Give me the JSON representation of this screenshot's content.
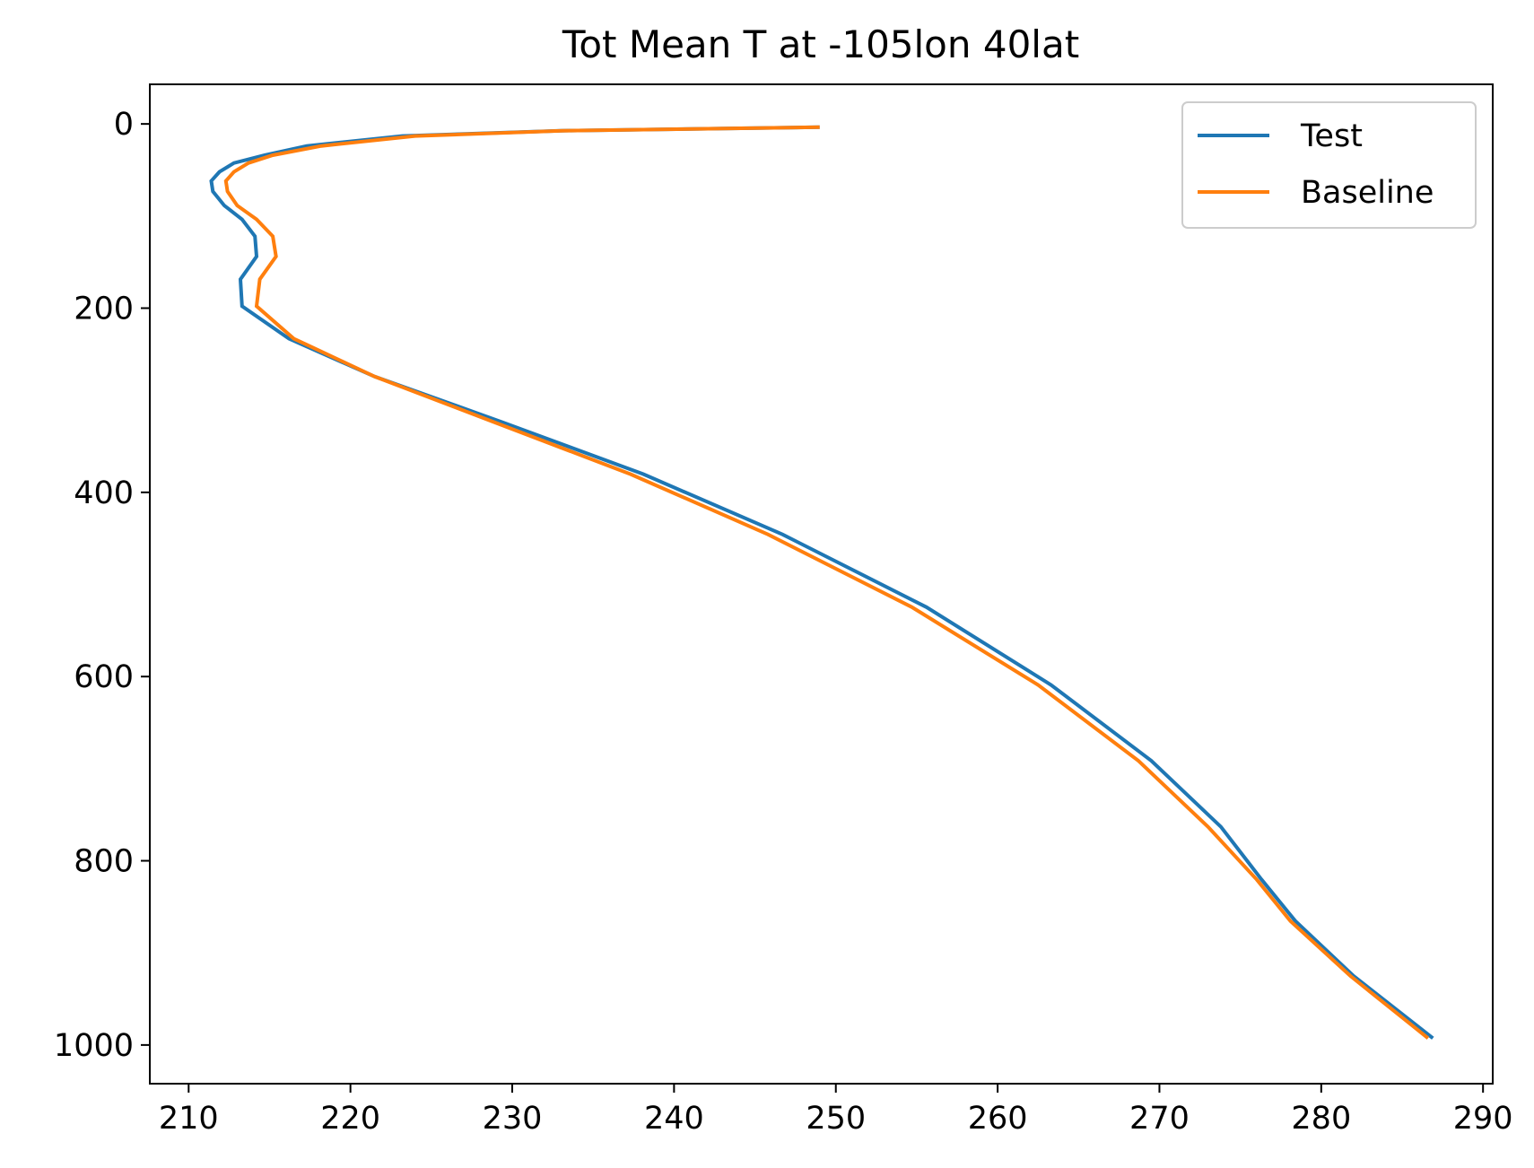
{
  "chart_data": {
    "type": "line",
    "title": "Tot Mean T at -105lon 40lat",
    "xlabel": "",
    "ylabel": "",
    "xlim": [
      207.6,
      290.6
    ],
    "ylim": [
      1042,
      -43
    ],
    "y_inverted": true,
    "grid": false,
    "legend_position": "upper right",
    "xticks": [
      210,
      220,
      230,
      240,
      250,
      260,
      270,
      280,
      290
    ],
    "yticks": [
      0,
      200,
      400,
      600,
      800,
      1000
    ],
    "series": [
      {
        "name": "Test",
        "color": "#1f77b4",
        "x": [
          249.0,
          233.0,
          223.2,
          217.3,
          214.7,
          212.8,
          211.9,
          211.4,
          211.5,
          212.2,
          213.3,
          214.1,
          214.2,
          213.2,
          213.3,
          216.2,
          221.5,
          229.4,
          238.1,
          246.7,
          255.6,
          263.3,
          269.5,
          273.8,
          276.3,
          278.4,
          282.0,
          286.9
        ],
        "y": [
          3.6,
          7.4,
          13.1,
          23.9,
          33.9,
          42.4,
          52.1,
          61.9,
          73.3,
          88.6,
          103.6,
          122.0,
          143.9,
          168.6,
          197.9,
          233.1,
          274.3,
          323.9,
          380.2,
          445.6,
          524.6,
          609.1,
          691.4,
          763.2,
          820.1,
          865.4,
          925.0,
          992.6
        ]
      },
      {
        "name": "Baseline",
        "color": "#ff7f0e",
        "x": [
          249.0,
          233.1,
          224.0,
          218.2,
          215.2,
          213.7,
          212.8,
          212.3,
          212.4,
          213.0,
          214.2,
          215.2,
          215.4,
          214.4,
          214.2,
          216.5,
          221.5,
          228.9,
          237.3,
          245.8,
          254.7,
          262.5,
          268.7,
          273.0,
          276.0,
          278.1,
          281.8,
          286.6
        ],
        "y": [
          3.6,
          7.4,
          13.1,
          23.9,
          33.9,
          42.4,
          52.1,
          61.9,
          73.3,
          88.6,
          103.6,
          122.0,
          143.9,
          168.6,
          197.9,
          233.1,
          274.3,
          323.9,
          380.2,
          445.6,
          524.6,
          609.1,
          691.4,
          763.2,
          820.1,
          865.4,
          925.0,
          992.6
        ]
      }
    ]
  }
}
